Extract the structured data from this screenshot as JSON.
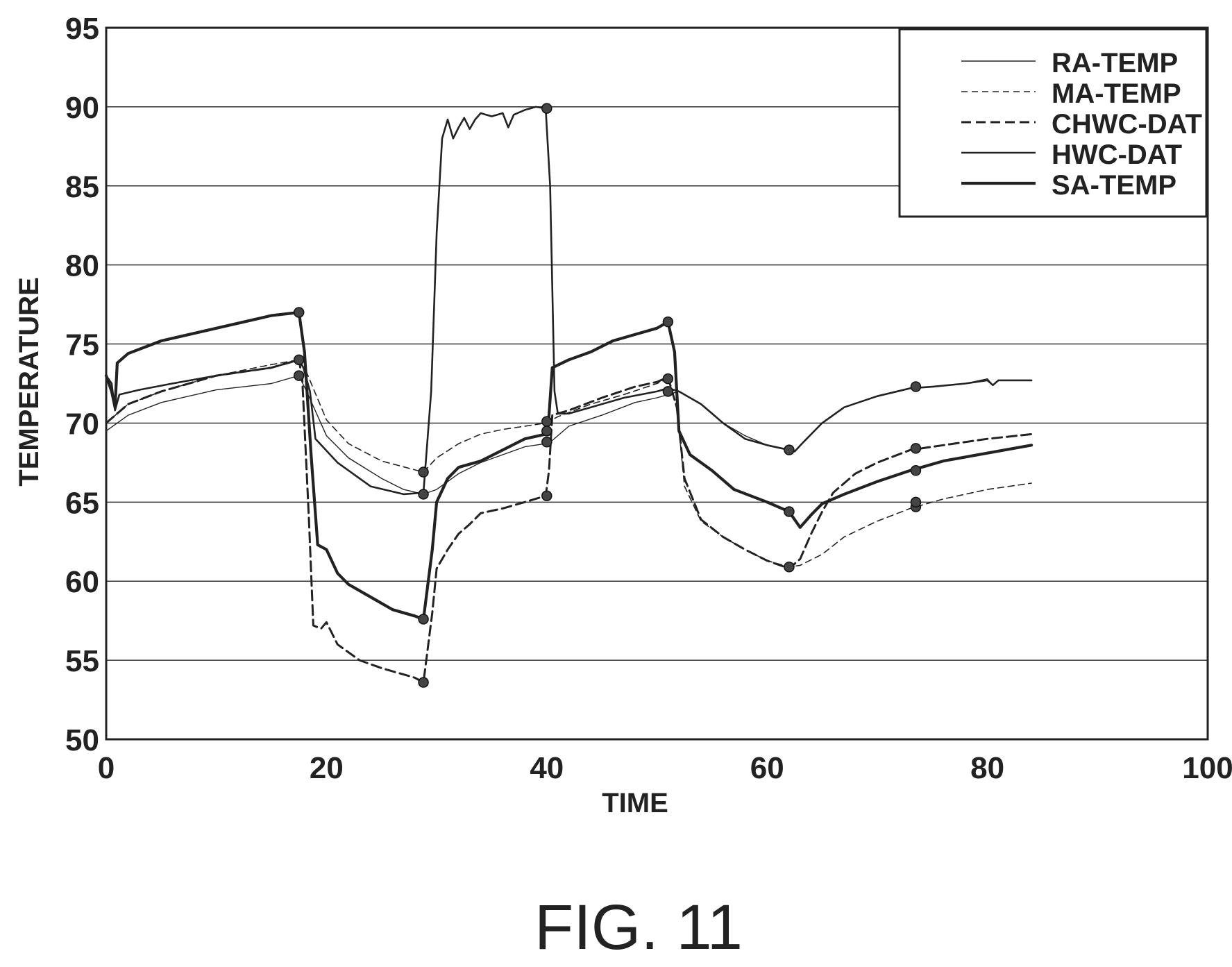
{
  "figure": {
    "caption": "FIG. 11"
  },
  "chart_data": {
    "type": "line",
    "title": "",
    "xlabel": "TIME",
    "ylabel": "TEMPERATURE",
    "xlim": [
      0,
      100
    ],
    "ylim": [
      50,
      95
    ],
    "x_ticks": [
      0,
      20,
      40,
      60,
      80,
      100
    ],
    "y_ticks": [
      50,
      55,
      60,
      65,
      70,
      75,
      80,
      85,
      90,
      95
    ],
    "grid": "horizontal",
    "legend_position": "top-right",
    "line_color": "#222222",
    "series": [
      {
        "name": "RA-TEMP",
        "style": "thin-solid",
        "points": [
          [
            0,
            69.5
          ],
          [
            2,
            70.5
          ],
          [
            5,
            71.3
          ],
          [
            10,
            72.1
          ],
          [
            15,
            72.5
          ],
          [
            17.5,
            73.0
          ],
          [
            18.2,
            72.0
          ],
          [
            20,
            69.2
          ],
          [
            22,
            67.8
          ],
          [
            25,
            66.5
          ],
          [
            27,
            65.8
          ],
          [
            28.8,
            65.5
          ],
          [
            30,
            65.8
          ],
          [
            32,
            66.8
          ],
          [
            34,
            67.5
          ],
          [
            36,
            68.0
          ],
          [
            38,
            68.5
          ],
          [
            39.9,
            68.7
          ],
          [
            40.5,
            68.9
          ],
          [
            42,
            69.8
          ],
          [
            45,
            70.5
          ],
          [
            48,
            71.3
          ],
          [
            50,
            71.6
          ],
          [
            51,
            71.8
          ],
          [
            52,
            72.0
          ],
          [
            54,
            71.2
          ],
          [
            56,
            70.0
          ],
          [
            58,
            69.2
          ],
          [
            60,
            68.6
          ],
          [
            62,
            68.3
          ],
          [
            62.5,
            68.2
          ],
          [
            63.3,
            68.8
          ],
          [
            65,
            70.0
          ],
          [
            67,
            71.0
          ],
          [
            70,
            71.7
          ],
          [
            73,
            72.2
          ],
          [
            75,
            72.3
          ],
          [
            78,
            72.5
          ],
          [
            80,
            72.8
          ],
          [
            80.5,
            72.4
          ],
          [
            81,
            72.7
          ],
          [
            84,
            72.7
          ]
        ],
        "markers": [
          [
            28.8,
            65.5
          ],
          [
            62,
            68.3
          ],
          [
            73.5,
            72.3
          ]
        ]
      },
      {
        "name": "MA-TEMP",
        "style": "thin-dashed",
        "points": [
          [
            0,
            70.0
          ],
          [
            2,
            71.2
          ],
          [
            5,
            72.0
          ],
          [
            10,
            73.0
          ],
          [
            15,
            73.7
          ],
          [
            17.5,
            74.0
          ],
          [
            18.2,
            73.2
          ],
          [
            20,
            70.2
          ],
          [
            22,
            68.7
          ],
          [
            25,
            67.6
          ],
          [
            28.8,
            66.9
          ],
          [
            30,
            67.8
          ],
          [
            32,
            68.7
          ],
          [
            34,
            69.3
          ],
          [
            36,
            69.6
          ],
          [
            38,
            69.8
          ],
          [
            39.9,
            70.0
          ],
          [
            41,
            70.4
          ],
          [
            44,
            71.2
          ],
          [
            47,
            71.8
          ],
          [
            50,
            72.5
          ],
          [
            51,
            72.8
          ],
          [
            51.8,
            71.0
          ],
          [
            52.5,
            66.0
          ],
          [
            54,
            63.8
          ],
          [
            56,
            62.8
          ],
          [
            58,
            62.0
          ],
          [
            60,
            61.3
          ],
          [
            62,
            60.9
          ],
          [
            63,
            61.0
          ],
          [
            65,
            61.7
          ],
          [
            67,
            62.8
          ],
          [
            70,
            63.8
          ],
          [
            73,
            64.6
          ],
          [
            76,
            65.2
          ],
          [
            80,
            65.8
          ],
          [
            84,
            66.2
          ]
        ],
        "markers": [
          [
            40,
            70.1
          ],
          [
            73.5,
            64.7
          ]
        ]
      },
      {
        "name": "CHWC-DAT",
        "style": "thick-dashed",
        "points": [
          [
            0,
            70.0
          ],
          [
            2,
            71.2
          ],
          [
            5,
            72.0
          ],
          [
            10,
            73.0
          ],
          [
            15,
            73.5
          ],
          [
            17.5,
            74.0
          ],
          [
            17.8,
            72.8
          ],
          [
            18.4,
            64.0
          ],
          [
            18.8,
            57.2
          ],
          [
            19.5,
            57.0
          ],
          [
            20,
            57.4
          ],
          [
            21,
            56.0
          ],
          [
            23,
            55.0
          ],
          [
            25,
            54.5
          ],
          [
            28,
            53.9
          ],
          [
            28.8,
            53.6
          ],
          [
            29.6,
            58.0
          ],
          [
            30,
            60.8
          ],
          [
            31,
            62.0
          ],
          [
            32,
            63.0
          ],
          [
            33,
            63.6
          ],
          [
            34,
            64.3
          ],
          [
            36,
            64.6
          ],
          [
            38,
            65.0
          ],
          [
            39.9,
            65.4
          ],
          [
            40.2,
            67.0
          ],
          [
            40.5,
            70.5
          ],
          [
            42,
            70.8
          ],
          [
            45,
            71.6
          ],
          [
            48,
            72.3
          ],
          [
            50,
            72.6
          ],
          [
            51,
            72.9
          ],
          [
            51.8,
            71.0
          ],
          [
            52.5,
            66.5
          ],
          [
            54,
            63.9
          ],
          [
            56,
            62.8
          ],
          [
            58,
            62.0
          ],
          [
            60,
            61.3
          ],
          [
            62,
            60.8
          ],
          [
            63,
            61.4
          ],
          [
            64,
            63.0
          ],
          [
            65,
            64.4
          ],
          [
            66,
            65.6
          ],
          [
            68,
            66.8
          ],
          [
            70,
            67.5
          ],
          [
            73,
            68.3
          ],
          [
            76,
            68.6
          ],
          [
            80,
            69.0
          ],
          [
            84,
            69.3
          ]
        ],
        "markers": [
          [
            17.5,
            73.0
          ],
          [
            28.8,
            53.6
          ],
          [
            40,
            65.4
          ],
          [
            73.5,
            68.4
          ]
        ]
      },
      {
        "name": "HWC-DAT",
        "style": "medium-solid",
        "points": [
          [
            0,
            73.0
          ],
          [
            0.5,
            72.5
          ],
          [
            0.8,
            70.8
          ],
          [
            1.2,
            71.8
          ],
          [
            3,
            72.1
          ],
          [
            6,
            72.5
          ],
          [
            10,
            73.0
          ],
          [
            15,
            73.5
          ],
          [
            17.5,
            74.0
          ],
          [
            17.9,
            73.5
          ],
          [
            18.5,
            72.0
          ],
          [
            19,
            69.0
          ],
          [
            21,
            67.5
          ],
          [
            24,
            66.0
          ],
          [
            27,
            65.5
          ],
          [
            28.8,
            65.6
          ],
          [
            29.5,
            72.0
          ],
          [
            30,
            82.0
          ],
          [
            30.5,
            88.0
          ],
          [
            31,
            89.2
          ],
          [
            31.5,
            88.0
          ],
          [
            32,
            88.7
          ],
          [
            32.5,
            89.3
          ],
          [
            33,
            88.6
          ],
          [
            33.5,
            89.2
          ],
          [
            34,
            89.6
          ],
          [
            35,
            89.4
          ],
          [
            36,
            89.6
          ],
          [
            36.5,
            88.7
          ],
          [
            37,
            89.5
          ],
          [
            38,
            89.8
          ],
          [
            39,
            90.0
          ],
          [
            39.9,
            89.9
          ],
          [
            40.3,
            85.0
          ],
          [
            40.7,
            72.0
          ],
          [
            41,
            70.6
          ],
          [
            42,
            70.6
          ],
          [
            44,
            71.0
          ],
          [
            47,
            71.6
          ],
          [
            50,
            72.0
          ],
          [
            51,
            72.2
          ],
          [
            52,
            72.0
          ],
          [
            54,
            71.2
          ],
          [
            56,
            70.0
          ],
          [
            58,
            69.0
          ],
          [
            60,
            68.6
          ],
          [
            62,
            68.3
          ],
          [
            62.5,
            68.2
          ],
          [
            63.3,
            68.8
          ],
          [
            65,
            70.0
          ],
          [
            67,
            71.0
          ],
          [
            70,
            71.7
          ],
          [
            73,
            72.2
          ],
          [
            75,
            72.3
          ],
          [
            78,
            72.5
          ],
          [
            80,
            72.7
          ],
          [
            80.5,
            72.4
          ],
          [
            81,
            72.7
          ],
          [
            84,
            72.7
          ]
        ],
        "markers": [
          [
            40,
            89.9
          ]
        ]
      },
      {
        "name": "SA-TEMP",
        "style": "thick-solid",
        "points": [
          [
            0,
            73.0
          ],
          [
            0.5,
            72.0
          ],
          [
            0.8,
            71.0
          ],
          [
            1,
            73.8
          ],
          [
            2,
            74.4
          ],
          [
            5,
            75.2
          ],
          [
            10,
            76.0
          ],
          [
            15,
            76.8
          ],
          [
            17.5,
            77.0
          ],
          [
            18,
            74.5
          ],
          [
            18.6,
            68.0
          ],
          [
            19.2,
            62.3
          ],
          [
            20,
            62.0
          ],
          [
            21,
            60.5
          ],
          [
            22,
            59.8
          ],
          [
            24,
            59.0
          ],
          [
            26,
            58.2
          ],
          [
            28,
            57.8
          ],
          [
            28.8,
            57.6
          ],
          [
            29.6,
            62.0
          ],
          [
            30,
            65.0
          ],
          [
            31,
            66.5
          ],
          [
            32,
            67.2
          ],
          [
            34,
            67.6
          ],
          [
            36,
            68.3
          ],
          [
            38,
            69.0
          ],
          [
            39.9,
            69.3
          ],
          [
            40.2,
            70.5
          ],
          [
            40.5,
            73.5
          ],
          [
            42,
            74.0
          ],
          [
            44,
            74.5
          ],
          [
            46,
            75.2
          ],
          [
            48,
            75.6
          ],
          [
            50,
            76.0
          ],
          [
            51,
            76.4
          ],
          [
            51.6,
            74.5
          ],
          [
            52,
            69.5
          ],
          [
            53,
            68.0
          ],
          [
            55,
            67.0
          ],
          [
            57,
            65.8
          ],
          [
            60,
            65.0
          ],
          [
            62,
            64.4
          ],
          [
            63,
            63.4
          ],
          [
            64,
            64.2
          ],
          [
            65,
            64.9
          ],
          [
            67,
            65.5
          ],
          [
            70,
            66.3
          ],
          [
            73,
            67.0
          ],
          [
            76,
            67.6
          ],
          [
            80,
            68.1
          ],
          [
            84,
            68.6
          ]
        ],
        "markers": [
          [
            17.5,
            77.0
          ],
          [
            17.5,
            74.0
          ],
          [
            28.8,
            66.9
          ],
          [
            28.8,
            57.6
          ],
          [
            40,
            68.8
          ],
          [
            40,
            69.5
          ],
          [
            51,
            76.4
          ],
          [
            51,
            72.8
          ],
          [
            51,
            72.0
          ],
          [
            62,
            64.4
          ],
          [
            62,
            60.9
          ],
          [
            73.5,
            67.0
          ],
          [
            73.5,
            65.0
          ]
        ]
      }
    ]
  }
}
